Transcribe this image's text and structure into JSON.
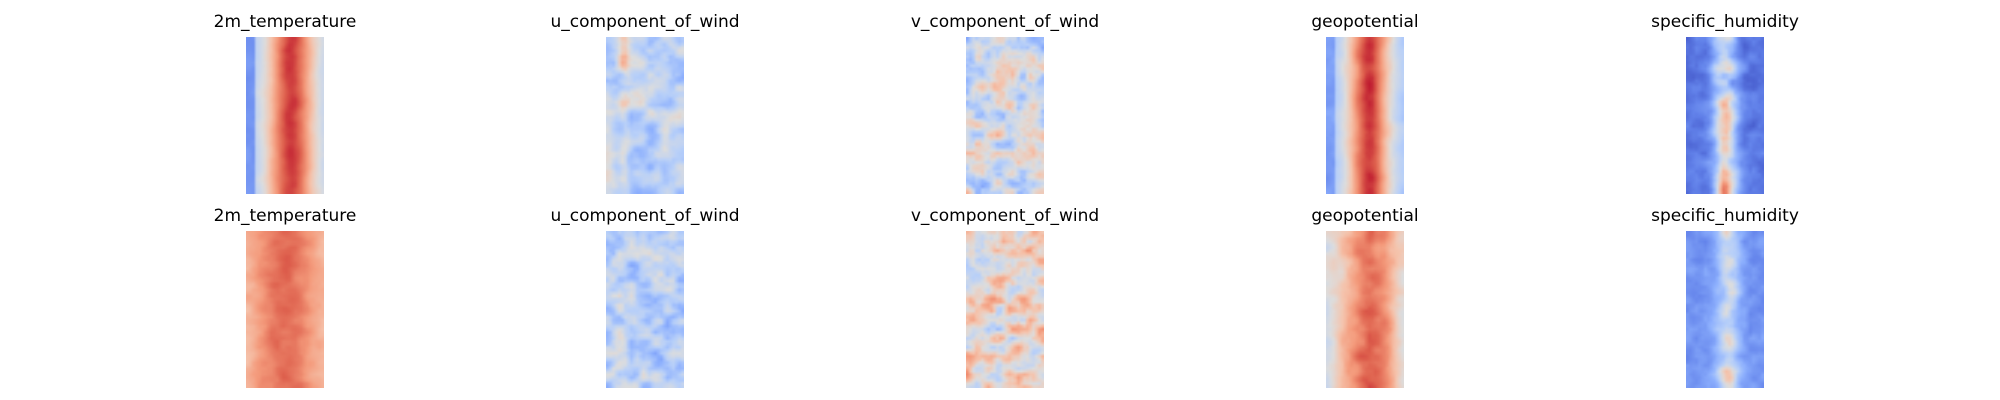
{
  "chart_data": [
    {
      "type": "heatmap",
      "title": "2m_temperature",
      "row": 1,
      "col": 1,
      "colormap": "coolwarm",
      "profile": "temp_a"
    },
    {
      "type": "heatmap",
      "title": "u_component_of_wind",
      "row": 1,
      "col": 2,
      "colormap": "coolwarm",
      "profile": "uwind_a"
    },
    {
      "type": "heatmap",
      "title": "v_component_of_wind",
      "row": 1,
      "col": 3,
      "colormap": "coolwarm",
      "profile": "vwind_a"
    },
    {
      "type": "heatmap",
      "title": "geopotential",
      "row": 1,
      "col": 4,
      "colormap": "coolwarm",
      "profile": "geo_a"
    },
    {
      "type": "heatmap",
      "title": "specific_humidity",
      "row": 1,
      "col": 5,
      "colormap": "coolwarm",
      "profile": "hum_a"
    },
    {
      "type": "heatmap",
      "title": "2m_temperature",
      "row": 2,
      "col": 1,
      "colormap": "coolwarm",
      "profile": "temp_b"
    },
    {
      "type": "heatmap",
      "title": "u_component_of_wind",
      "row": 2,
      "col": 2,
      "colormap": "coolwarm",
      "profile": "uwind_b"
    },
    {
      "type": "heatmap",
      "title": "v_component_of_wind",
      "row": 2,
      "col": 3,
      "colormap": "coolwarm",
      "profile": "vwind_b"
    },
    {
      "type": "heatmap",
      "title": "geopotential",
      "row": 2,
      "col": 4,
      "colormap": "coolwarm",
      "profile": "geo_b"
    },
    {
      "type": "heatmap",
      "title": "specific_humidity",
      "row": 2,
      "col": 5,
      "colormap": "coolwarm",
      "profile": "hum_b"
    }
  ]
}
